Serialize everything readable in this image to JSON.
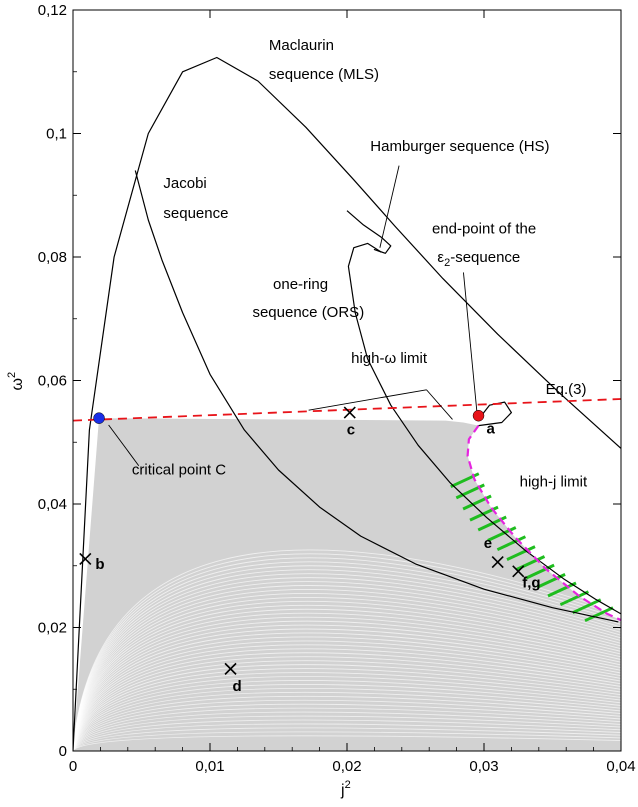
{
  "chart_data": {
    "type": "scatter",
    "title": "",
    "xlabel": "j",
    "xlabel_sup": "2",
    "ylabel": "ω",
    "ylabel_sup": "2",
    "xlim": [
      0,
      0.04
    ],
    "ylim": [
      0,
      0.12
    ],
    "xticks": [
      {
        "value": 0,
        "label": "0"
      },
      {
        "value": 0.01,
        "label": "0,01"
      },
      {
        "value": 0.02,
        "label": "0,02"
      },
      {
        "value": 0.03,
        "label": "0,03"
      },
      {
        "value": 0.04,
        "label": "0,04"
      }
    ],
    "yticks": [
      {
        "value": 0,
        "label": "0"
      },
      {
        "value": 0.02,
        "label": "0,02"
      },
      {
        "value": 0.04,
        "label": "0,04"
      },
      {
        "value": 0.06,
        "label": "0,06"
      },
      {
        "value": 0.08,
        "label": "0,08"
      },
      {
        "value": 0.1,
        "label": "0,1"
      },
      {
        "value": 0.12,
        "label": "0,12"
      }
    ],
    "grid": false,
    "colors": {
      "cloud": "#d2d2d2",
      "curve": "#000000",
      "eq3": "#e8141a",
      "highj": "#e625e0",
      "hatch": "#1fbd1f",
      "point_c": "#1a2ee6",
      "point_a": "#e8141a"
    },
    "series": [
      {
        "name": "Maclaurin sequence (MLS)",
        "kind": "line",
        "points": [
          [
            0,
            0
          ],
          [
            0.0012,
            0.052
          ],
          [
            0.003,
            0.08
          ],
          [
            0.0055,
            0.1
          ],
          [
            0.008,
            0.11
          ],
          [
            0.0105,
            0.1123
          ],
          [
            0.0135,
            0.1085
          ],
          [
            0.017,
            0.101
          ],
          [
            0.0205,
            0.0925
          ],
          [
            0.0235,
            0.085
          ],
          [
            0.027,
            0.0765
          ],
          [
            0.031,
            0.0675
          ],
          [
            0.0355,
            0.058
          ],
          [
            0.04,
            0.049
          ]
        ]
      },
      {
        "name": "Jacobi sequence",
        "kind": "line",
        "points": [
          [
            0.00455,
            0.094
          ],
          [
            0.0055,
            0.086
          ],
          [
            0.0065,
            0.0795
          ],
          [
            0.008,
            0.071
          ],
          [
            0.01,
            0.061
          ],
          [
            0.0125,
            0.052
          ],
          [
            0.015,
            0.0455
          ],
          [
            0.018,
            0.0395
          ],
          [
            0.021,
            0.0348
          ],
          [
            0.025,
            0.0303
          ],
          [
            0.03,
            0.0262
          ],
          [
            0.035,
            0.0232
          ],
          [
            0.0398,
            0.0209
          ]
        ]
      },
      {
        "name": "one-ring sequence (ORS)",
        "kind": "line",
        "points": [
          [
            0.0225,
            0.0808
          ],
          [
            0.0215,
            0.0822
          ],
          [
            0.0205,
            0.0815
          ],
          [
            0.0201,
            0.0785
          ],
          [
            0.0206,
            0.071
          ],
          [
            0.0215,
            0.0635
          ],
          [
            0.0232,
            0.056
          ],
          [
            0.0252,
            0.0495
          ],
          [
            0.0275,
            0.0435
          ],
          [
            0.0302,
            0.0378
          ],
          [
            0.033,
            0.0325
          ],
          [
            0.0358,
            0.0279
          ],
          [
            0.0382,
            0.0245
          ],
          [
            0.04,
            0.0222
          ]
        ]
      },
      {
        "name": "Hamburger sequence (HS)",
        "kind": "line",
        "points": [
          [
            0.02,
            0.0875
          ],
          [
            0.0212,
            0.0852
          ],
          [
            0.0225,
            0.0832
          ],
          [
            0.0232,
            0.0818
          ],
          [
            0.0228,
            0.0806
          ],
          [
            0.022,
            0.0812
          ],
          [
            0.0225,
            0.0808
          ]
        ]
      },
      {
        "name": "ε2-sequence",
        "kind": "line",
        "points": [
          [
            0.0298,
            0.0543
          ],
          [
            0.0304,
            0.056
          ],
          [
            0.0315,
            0.0565
          ],
          [
            0.032,
            0.0548
          ],
          [
            0.0313,
            0.0532
          ],
          [
            0.0296,
            0.0527
          ]
        ]
      },
      {
        "name": "Eq.(3)",
        "kind": "dashed-line",
        "points": [
          [
            0,
            0.0535
          ],
          [
            0.04,
            0.057
          ]
        ]
      },
      {
        "name": "high-j limit",
        "kind": "dashed-line",
        "points": [
          [
            0.0296,
            0.0527
          ],
          [
            0.0289,
            0.0505
          ],
          [
            0.0288,
            0.0478
          ],
          [
            0.0293,
            0.044
          ],
          [
            0.0305,
            0.0395
          ],
          [
            0.0322,
            0.0348
          ],
          [
            0.0345,
            0.0295
          ],
          [
            0.037,
            0.025
          ],
          [
            0.039,
            0.0222
          ],
          [
            0.04,
            0.0212
          ]
        ]
      },
      {
        "name": "high-ω limit",
        "kind": "cloud-edge",
        "points": [
          [
            0.0019,
            0.0539
          ],
          [
            0.028,
            0.0535
          ]
        ]
      }
    ],
    "points": [
      {
        "name": "C",
        "x": 0.0019,
        "y": 0.0539,
        "marker": "dot",
        "color": "#1a2ee6"
      },
      {
        "name": "a",
        "x": 0.0296,
        "y": 0.0543,
        "marker": "dot",
        "color": "#e8141a"
      },
      {
        "name": "b",
        "x": 0.0009,
        "y": 0.0311,
        "marker": "cross"
      },
      {
        "name": "c",
        "x": 0.0202,
        "y": 0.0548,
        "marker": "cross"
      },
      {
        "name": "d",
        "x": 0.0115,
        "y": 0.0133,
        "marker": "cross"
      },
      {
        "name": "e",
        "x": 0.031,
        "y": 0.0306,
        "marker": "cross"
      },
      {
        "name": "f,g",
        "x": 0.0325,
        "y": 0.0291,
        "marker": "cross"
      }
    ],
    "annotations": [
      {
        "id": "mls1",
        "text": "Maclaurin",
        "x": 0.0143,
        "y": 0.1135
      },
      {
        "id": "mls2",
        "text": "sequence (MLS)",
        "x": 0.0143,
        "y": 0.1088
      },
      {
        "id": "hs",
        "text": "Hamburger sequence (HS)",
        "x": 0.0217,
        "y": 0.0972
      },
      {
        "id": "jac1",
        "text": "Jacobi",
        "x": 0.0066,
        "y": 0.0912
      },
      {
        "id": "jac2",
        "text": "sequence",
        "x": 0.0066,
        "y": 0.0863
      },
      {
        "id": "ep1",
        "text": "end-point of the",
        "x": 0.0262,
        "y": 0.0838
      },
      {
        "id": "ors1",
        "text": "one-ring",
        "x": 0.0146,
        "y": 0.0748
      },
      {
        "id": "ors2",
        "text": "sequence (ORS)",
        "x": 0.0131,
        "y": 0.0703
      },
      {
        "id": "how",
        "text": "high-ω limit",
        "x": 0.0203,
        "y": 0.0628
      },
      {
        "id": "eq3",
        "text": "Eq.(3)",
        "x": 0.0345,
        "y": 0.0578
      },
      {
        "id": "cpc",
        "text": "critical point C",
        "x": 0.0043,
        "y": 0.0448
      },
      {
        "id": "hjl",
        "text": "high-j limit",
        "x": 0.0326,
        "y": 0.0428
      }
    ],
    "epsilon_label": {
      "prefix": "ε",
      "sub": "2",
      "suffix": "-sequence",
      "x": 0.0266,
      "y": 0.0792
    },
    "leaders": [
      {
        "from": [
          0.0258,
          0.0585
        ],
        "to": [
          0.0172,
          0.0552
        ]
      },
      {
        "from": [
          0.0258,
          0.0585
        ],
        "to": [
          0.0277,
          0.0537
        ]
      },
      {
        "from": [
          0.0285,
          0.0775
        ],
        "to": [
          0.0295,
          0.0545
        ]
      },
      {
        "from": [
          0.0238,
          0.0948
        ],
        "to": [
          0.0224,
          0.0815
        ]
      },
      {
        "from": [
          0.0048,
          0.0462
        ],
        "to": [
          0.0026,
          0.0528
        ]
      }
    ]
  }
}
